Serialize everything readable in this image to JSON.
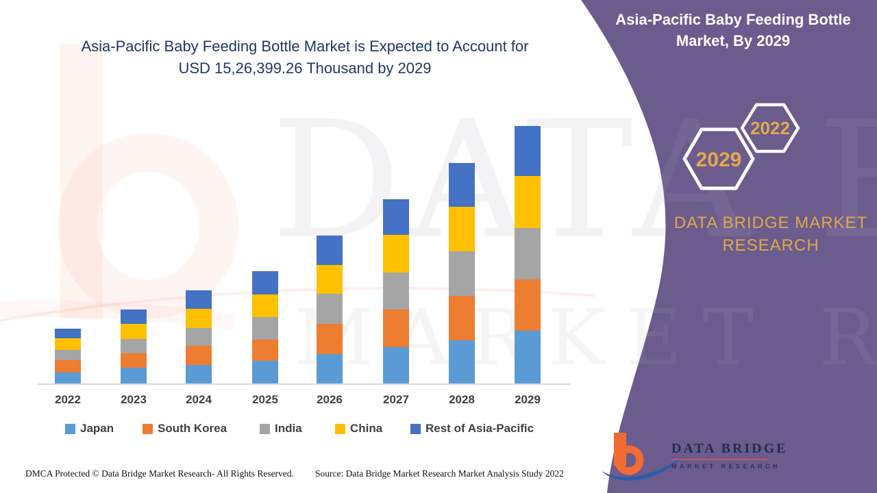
{
  "header": {
    "title_line1": "Asia-Pacific Baby Feeding Bottle Market is Expected to Account for",
    "title_line2": "USD 15,26,399.26 Thousand by 2029"
  },
  "side_panel": {
    "title_line1": "Asia-Pacific Baby Feeding Bottle",
    "title_line2": "Market, By 2029",
    "badge_front": "2029",
    "badge_back": "2022",
    "brand_line1": "DATA BRIDGE MARKET",
    "brand_line2": "RESEARCH",
    "panel_color": "#6B5C8D",
    "gold_color": "#DFA84A"
  },
  "watermark": {
    "row1": "DATA BRIDGE",
    "row2": "MARKET RESEARCH"
  },
  "logo": {
    "name_line": "DATA BRIDGE",
    "sub_line": "MARKET RESEARCH"
  },
  "footer": {
    "left": "DMCA Protected © Data Bridge Market Research- All Rights Reserved.",
    "right": "Source: Data Bridge Market Research Market Analysis Study 2022"
  },
  "colors": {
    "title_text": "#1F3864",
    "axis_text": "#3F3F3F",
    "axis_line": "#D7D7D7",
    "background": "#FFFFFF"
  },
  "chart_data": {
    "type": "bar",
    "stacked": true,
    "title": "Asia-Pacific Baby Feeding Bottle Market is Expected to Account for USD 15,26,399.26 Thousand by 2029",
    "unit": "USD Thousand",
    "values_estimated_from_bar_heights": true,
    "anchor_total_2029": "15,26,399.26",
    "categories": [
      "2022",
      "2023",
      "2024",
      "2025",
      "2026",
      "2027",
      "2028",
      "2029"
    ],
    "series": [
      {
        "name": "Japan",
        "color": "#5B9BD5",
        "values": [
          64960,
          93380,
          109620,
          133980,
          174580,
          215180,
          255780,
          312620
        ]
      },
      {
        "name": "South Korea",
        "color": "#ED7D31",
        "values": [
          73080,
          85260,
          113680,
          125860,
          178640,
          223300,
          263900,
          304500
        ]
      },
      {
        "name": "India",
        "color": "#A5A5A5",
        "values": [
          60900,
          85260,
          105560,
          133980,
          178640,
          219240,
          263900,
          304500
        ]
      },
      {
        "name": "China",
        "color": "#FFC000",
        "values": [
          69020,
          89320,
          113680,
          133980,
          170520,
          223300,
          263900,
          308560
        ]
      },
      {
        "name": "Rest of Asia-Pacific",
        "color": "#4472C4",
        "values": [
          56840,
          85260,
          109620,
          138040,
          174580,
          211120,
          259840,
          296380
        ]
      }
    ],
    "totals_estimated": [
      324800,
      438480,
      552160,
      665840,
      876960,
      1092140,
      1307320,
      1526560
    ],
    "xlabel": "",
    "ylabel": "",
    "y_axis_visible": false,
    "grid": false,
    "legend_position": "bottom"
  }
}
